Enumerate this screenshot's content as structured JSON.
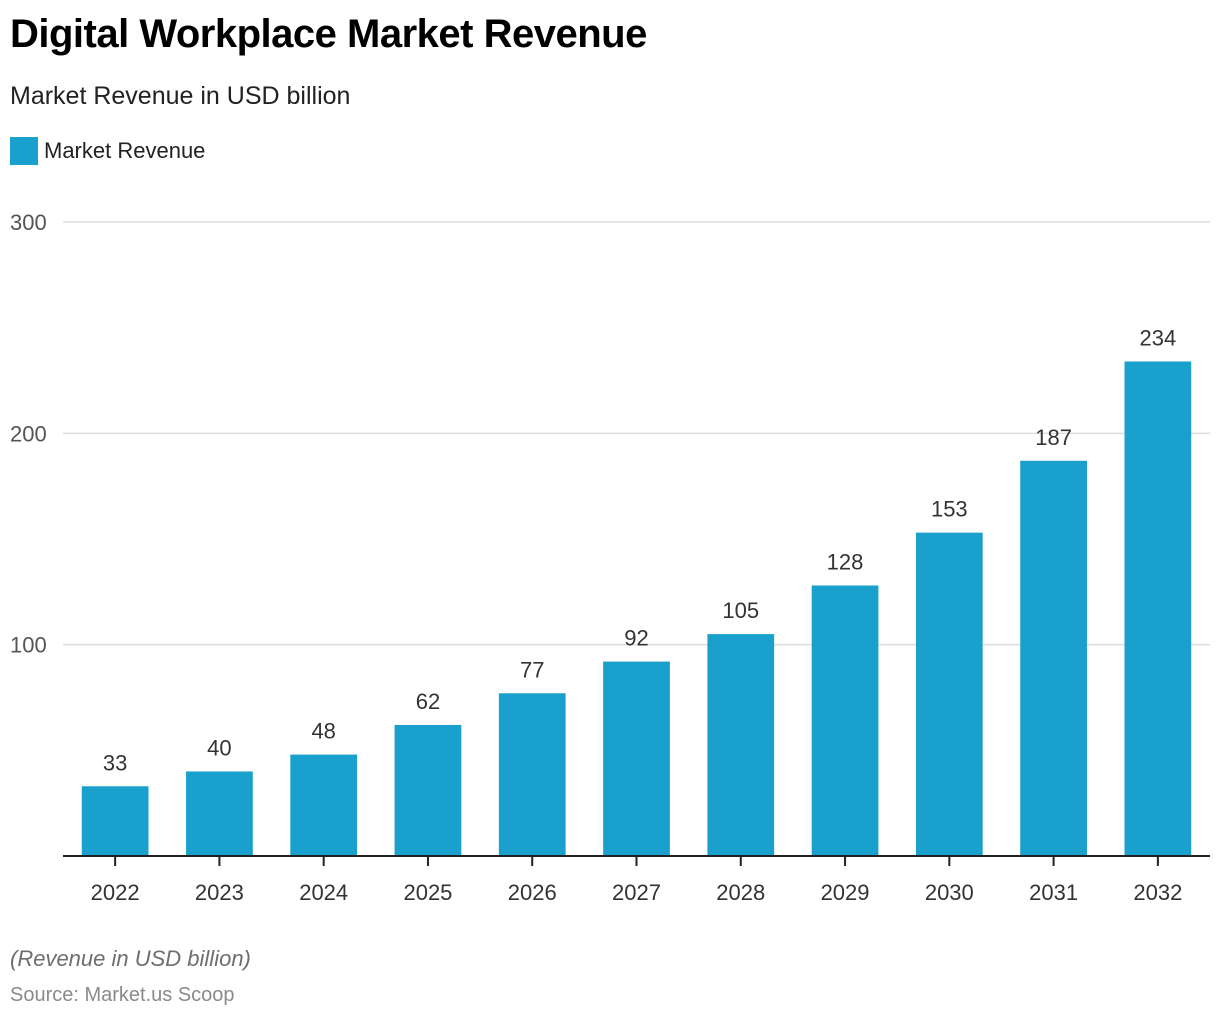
{
  "header": {
    "title": "Digital Workplace Market Revenue",
    "subtitle": "Market Revenue in USD billion"
  },
  "footer": {
    "note": "(Revenue in USD billion)",
    "source": "Source: Market.us Scoop"
  },
  "colors": {
    "bar": "#1aa0cc",
    "grid": "#dddddd",
    "axis": "#222222",
    "tick_label": "#555555",
    "value_label": "#333333"
  },
  "chart_data": {
    "type": "bar",
    "title": "Digital Workplace Market Revenue",
    "subtitle": "Market Revenue in USD billion",
    "xlabel": "",
    "ylabel": "",
    "categories": [
      "2022",
      "2023",
      "2024",
      "2025",
      "2026",
      "2027",
      "2028",
      "2029",
      "2030",
      "2031",
      "2032"
    ],
    "series": [
      {
        "name": "Market Revenue",
        "values": [
          33,
          40,
          48,
          62,
          77,
          92,
          105,
          128,
          153,
          187,
          234
        ]
      }
    ],
    "ylim": [
      0,
      300
    ],
    "yticks": [
      100,
      200,
      300
    ],
    "grid": true,
    "legend": "top-left",
    "data_labels": true
  }
}
